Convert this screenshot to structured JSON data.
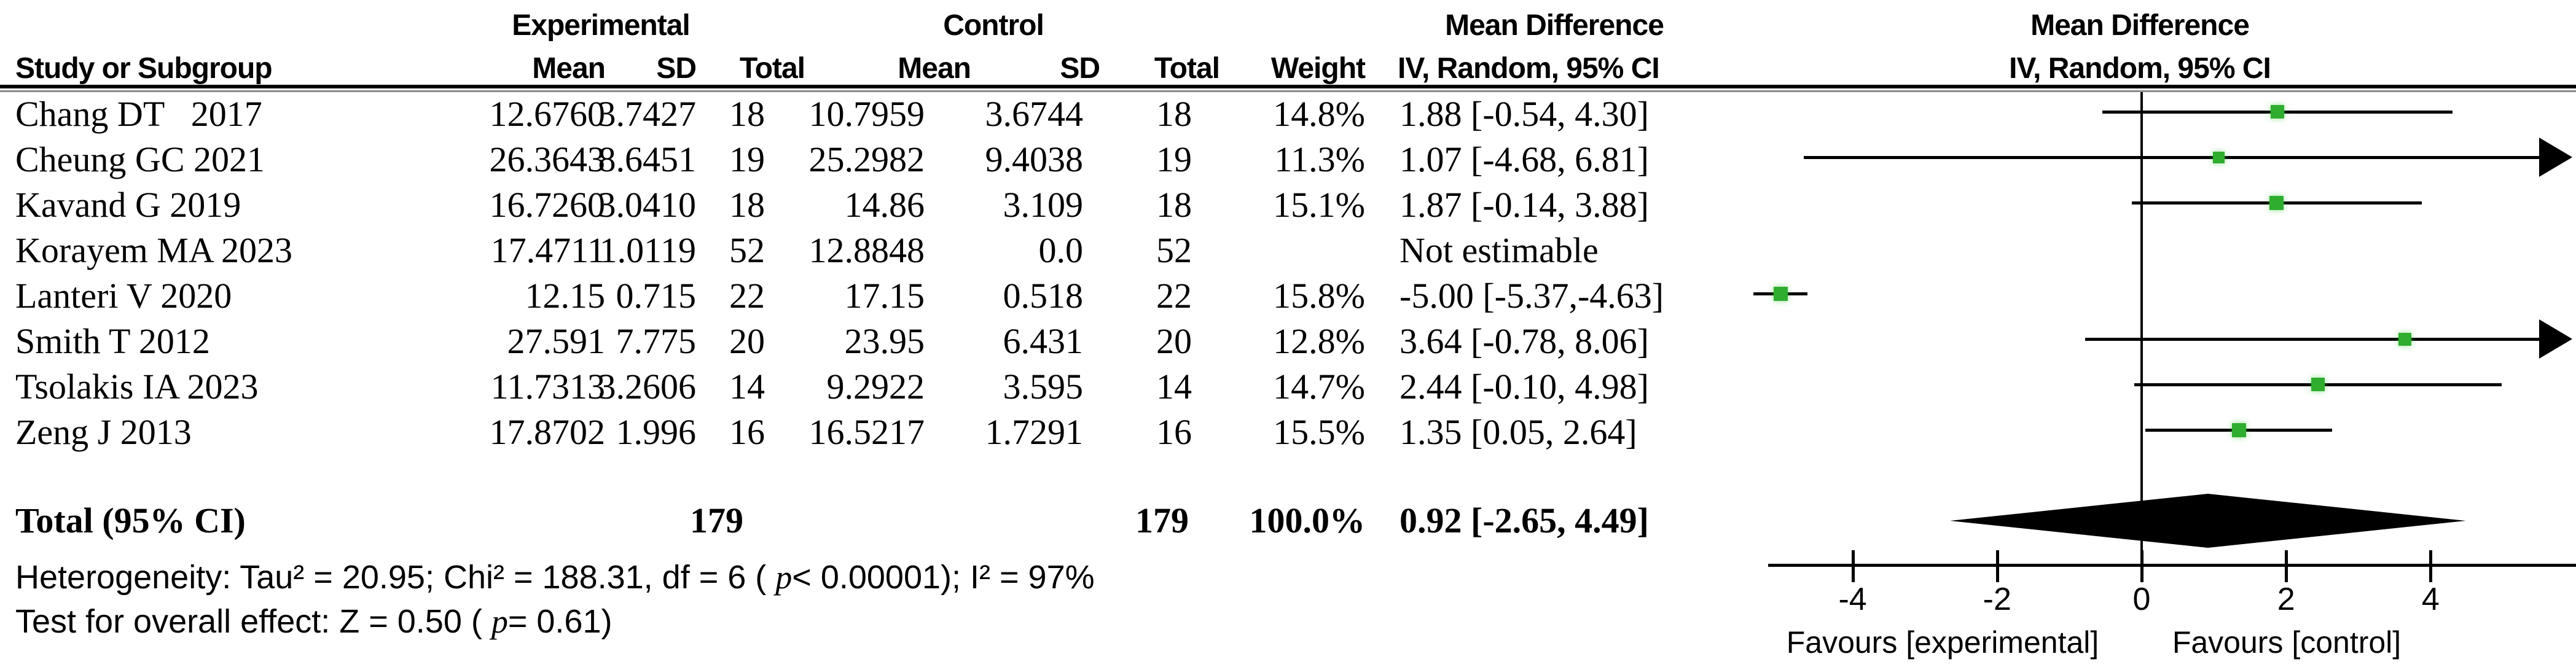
{
  "table": {
    "headers": {
      "group_experimental": "Experimental",
      "group_control": "Control",
      "effect_label": "Mean Difference",
      "model_label": "IV, Random, 95% CI",
      "study": "Study or Subgroup",
      "mean": "Mean",
      "sd": "SD",
      "total": "Total",
      "weight": "Weight"
    },
    "rows": [
      {
        "study": "Chang DT   2017",
        "exp_mean": "12.6760",
        "exp_sd": "3.7427",
        "exp_total": "18",
        "ctrl_mean": "10.7959",
        "ctrl_sd": "3.6744",
        "ctrl_total": "18",
        "weight": "14.8%",
        "ci": "1.88 [-0.54, 4.30]"
      },
      {
        "study": "Cheung GC 2021",
        "exp_mean": "26.3643",
        "exp_sd": "8.6451",
        "exp_total": "19",
        "ctrl_mean": "25.2982",
        "ctrl_sd": "9.4038",
        "ctrl_total": "19",
        "weight": "11.3%",
        "ci": "1.07 [-4.68, 6.81]"
      },
      {
        "study": "Kavand G 2019",
        "exp_mean": "16.7260",
        "exp_sd": "3.0410",
        "exp_total": "18",
        "ctrl_mean": "14.86",
        "ctrl_sd": "3.109",
        "ctrl_total": "18",
        "weight": "15.1%",
        "ci": "1.87 [-0.14, 3.88]"
      },
      {
        "study": "Korayem MA 2023",
        "exp_mean": "17.4711",
        "exp_sd": "1.0119",
        "exp_total": "52",
        "ctrl_mean": "12.8848",
        "ctrl_sd": "0.0",
        "ctrl_total": "52",
        "weight": "",
        "ci": "Not estimable"
      },
      {
        "study": "Lanteri V 2020",
        "exp_mean": "12.15",
        "exp_sd": "0.715",
        "exp_total": "22",
        "ctrl_mean": "17.15",
        "ctrl_sd": "0.518",
        "ctrl_total": "22",
        "weight": "15.8%",
        "ci": "-5.00 [-5.37,-4.63]"
      },
      {
        "study": "Smith T 2012",
        "exp_mean": "27.591",
        "exp_sd": "7.775",
        "exp_total": "20",
        "ctrl_mean": "23.95",
        "ctrl_sd": "6.431",
        "ctrl_total": "20",
        "weight": "12.8%",
        "ci": "3.64 [-0.78, 8.06]"
      },
      {
        "study": "Tsolakis IA 2023",
        "exp_mean": "11.7313",
        "exp_sd": "3.2606",
        "exp_total": "14",
        "ctrl_mean": "9.2922",
        "ctrl_sd": "3.595",
        "ctrl_total": "14",
        "weight": "14.7%",
        "ci": "2.44 [-0.10, 4.98]"
      },
      {
        "study": "Zeng J 2013",
        "exp_mean": "17.8702",
        "exp_sd": "1.996",
        "exp_total": "16",
        "ctrl_mean": "16.5217",
        "ctrl_sd": "1.7291",
        "ctrl_total": "16",
        "weight": "15.5%",
        "ci": "1.35 [0.05, 2.64]"
      }
    ],
    "total_row": {
      "label": "Total (95% CI)",
      "exp_total": "179",
      "ctrl_total": "179",
      "weight": "100.0%",
      "ci": "0.92 [-2.65, 4.49]"
    },
    "footer": {
      "heterogeneity_pre": "Heterogeneity: Tau² = 20.95; Chi² = 188.31, df = 6 ( ",
      "heterogeneity_p": "p",
      "heterogeneity_post": "< 0.00001); I² = 97%",
      "overall_pre": "Test for overall effect: Z = 0.50 ( ",
      "overall_p": "p",
      "overall_post": "= 0.61)"
    }
  },
  "chart_data": {
    "type": "forest",
    "effect_measure": "Mean Difference",
    "model": "IV, Random, 95% CI",
    "axis": {
      "ticks": [
        -4,
        -2,
        0,
        2,
        4
      ],
      "tick_labels": [
        "-4",
        "-2",
        "0",
        "2",
        "4"
      ],
      "plot_value_min": -5.45,
      "plot_value_max": 5.7,
      "zero_reference": 0
    },
    "favours_left": "Favours [experimental]",
    "favours_right": "Favours [control]",
    "marker_color": "#2fad2f",
    "line_color": "#000000",
    "studies": [
      {
        "name": "Chang DT 2017",
        "md": 1.88,
        "lo": -0.54,
        "hi": 4.3,
        "weight_pct": 14.8,
        "estimable": true
      },
      {
        "name": "Cheung GC 2021",
        "md": 1.07,
        "lo": -4.68,
        "hi": 6.81,
        "weight_pct": 11.3,
        "estimable": true
      },
      {
        "name": "Kavand G 2019",
        "md": 1.87,
        "lo": -0.14,
        "hi": 3.88,
        "weight_pct": 15.1,
        "estimable": true
      },
      {
        "name": "Korayem MA 2023",
        "md": null,
        "lo": null,
        "hi": null,
        "weight_pct": null,
        "estimable": false
      },
      {
        "name": "Lanteri V 2020",
        "md": -5.0,
        "lo": -5.37,
        "hi": -4.63,
        "weight_pct": 15.8,
        "estimable": true
      },
      {
        "name": "Smith T 2012",
        "md": 3.64,
        "lo": -0.78,
        "hi": 8.06,
        "weight_pct": 12.8,
        "estimable": true
      },
      {
        "name": "Tsolakis IA 2023",
        "md": 2.44,
        "lo": -0.1,
        "hi": 4.98,
        "weight_pct": 14.7,
        "estimable": true
      },
      {
        "name": "Zeng J 2013",
        "md": 1.35,
        "lo": 0.05,
        "hi": 2.64,
        "weight_pct": 15.5,
        "estimable": true
      }
    ],
    "total": {
      "md": 0.92,
      "lo": -2.65,
      "hi": 4.49,
      "weight_pct": 100.0
    }
  }
}
